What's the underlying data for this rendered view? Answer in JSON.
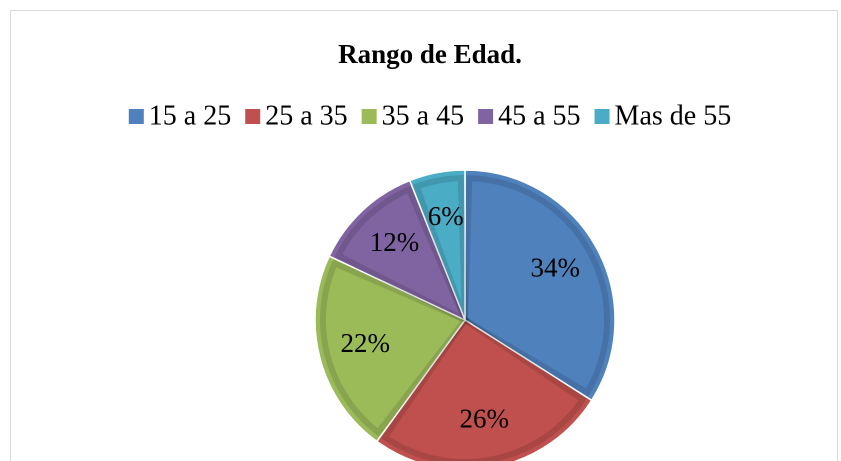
{
  "chart_data": {
    "type": "pie",
    "title": "Rango de Edad.",
    "categories": [
      "15 a 25",
      "25 a 35",
      "35 a 45",
      "45 a 55",
      "Mas de 55"
    ],
    "values": [
      34,
      26,
      22,
      12,
      6
    ],
    "value_labels": [
      "34%",
      "26%",
      "22%",
      "12%",
      "6%"
    ],
    "colors": [
      "#4f81bd",
      "#c0504d",
      "#9bbb59",
      "#8064a2",
      "#4bacc6"
    ],
    "legend": "top"
  }
}
